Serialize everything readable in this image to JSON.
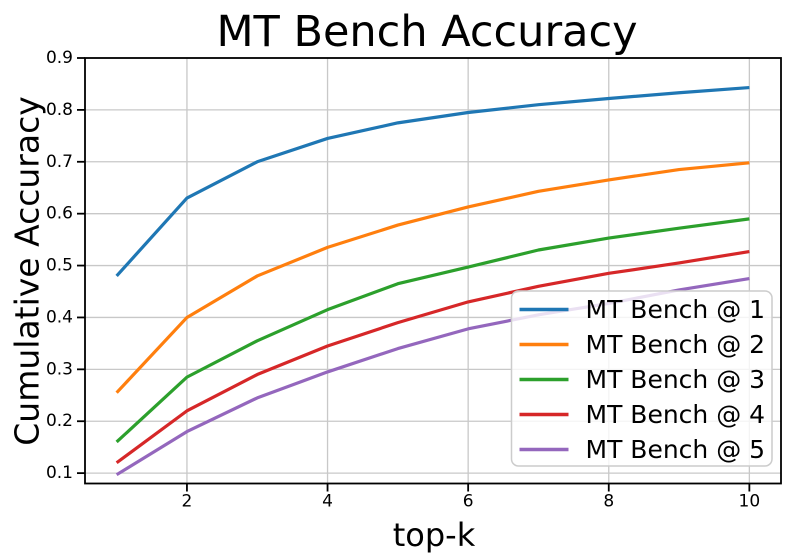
{
  "chart_data": {
    "type": "line",
    "title": "MT Bench Accuracy",
    "xlabel": "top-k",
    "ylabel": "Cumulative Accuracy",
    "x": [
      1,
      2,
      3,
      4,
      5,
      6,
      7,
      8,
      9,
      10
    ],
    "xlim": [
      0.55,
      10.45
    ],
    "ylim": [
      0.08,
      0.9
    ],
    "xticks": [
      2,
      4,
      6,
      8,
      10
    ],
    "yticks": [
      0.1,
      0.2,
      0.3,
      0.4,
      0.5,
      0.6,
      0.7,
      0.8,
      0.9
    ],
    "grid": true,
    "grid_color": "#c8c8c8",
    "background_color": "#ffffff",
    "legend_position": "lower-right-inside",
    "legend_border_color": "#cccccc",
    "series": [
      {
        "name": "MT Bench @ 1",
        "color": "#1f77b4",
        "values": [
          0.48,
          0.63,
          0.7,
          0.745,
          0.775,
          0.795,
          0.81,
          0.822,
          0.833,
          0.843
        ]
      },
      {
        "name": "MT Bench @ 2",
        "color": "#ff7f0e",
        "values": [
          0.255,
          0.4,
          0.48,
          0.535,
          0.578,
          0.613,
          0.643,
          0.665,
          0.685,
          0.698
        ]
      },
      {
        "name": "MT Bench @ 3",
        "color": "#2ca02c",
        "values": [
          0.16,
          0.285,
          0.355,
          0.415,
          0.465,
          0.497,
          0.53,
          0.553,
          0.572,
          0.59
        ]
      },
      {
        "name": "MT Bench @ 4",
        "color": "#d62728",
        "values": [
          0.12,
          0.22,
          0.29,
          0.345,
          0.39,
          0.43,
          0.46,
          0.485,
          0.505,
          0.527
        ]
      },
      {
        "name": "MT Bench @ 5",
        "color": "#9467bd",
        "values": [
          0.097,
          0.18,
          0.245,
          0.295,
          0.34,
          0.378,
          0.405,
          0.427,
          0.453,
          0.475
        ]
      }
    ]
  }
}
